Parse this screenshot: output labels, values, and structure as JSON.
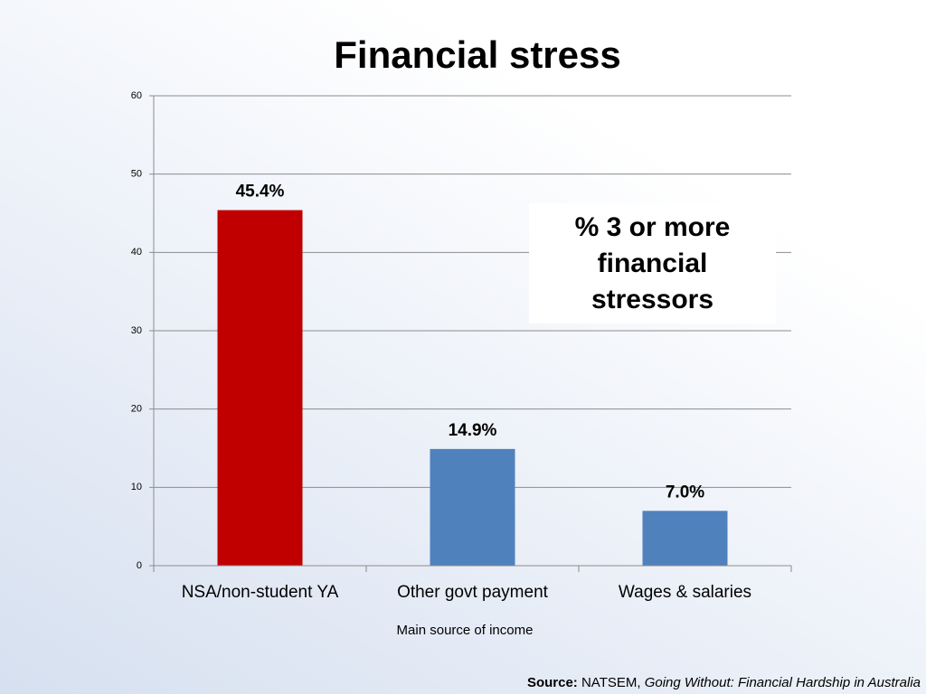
{
  "chart_data": {
    "type": "bar",
    "title": "Financial stress",
    "categories": [
      "NSA/non-student YA",
      "Other govt payment",
      "Wages & salaries"
    ],
    "values": [
      45.4,
      14.9,
      7.0
    ],
    "value_labels": [
      "45.4%",
      "14.9%",
      "7.0%"
    ],
    "colors": [
      "#c00000",
      "#4f81bd",
      "#4f81bd"
    ],
    "ylim": [
      0,
      60
    ],
    "yticks": [
      0,
      10,
      20,
      30,
      40,
      50,
      60
    ],
    "grid": true,
    "x_label": "Main source of income",
    "annotation": "% 3 or more financial stressors",
    "source": {
      "label": "Source:",
      "publisher": "NATSEM,",
      "publication": "Going Without: Financial Hardship in Australia"
    }
  }
}
